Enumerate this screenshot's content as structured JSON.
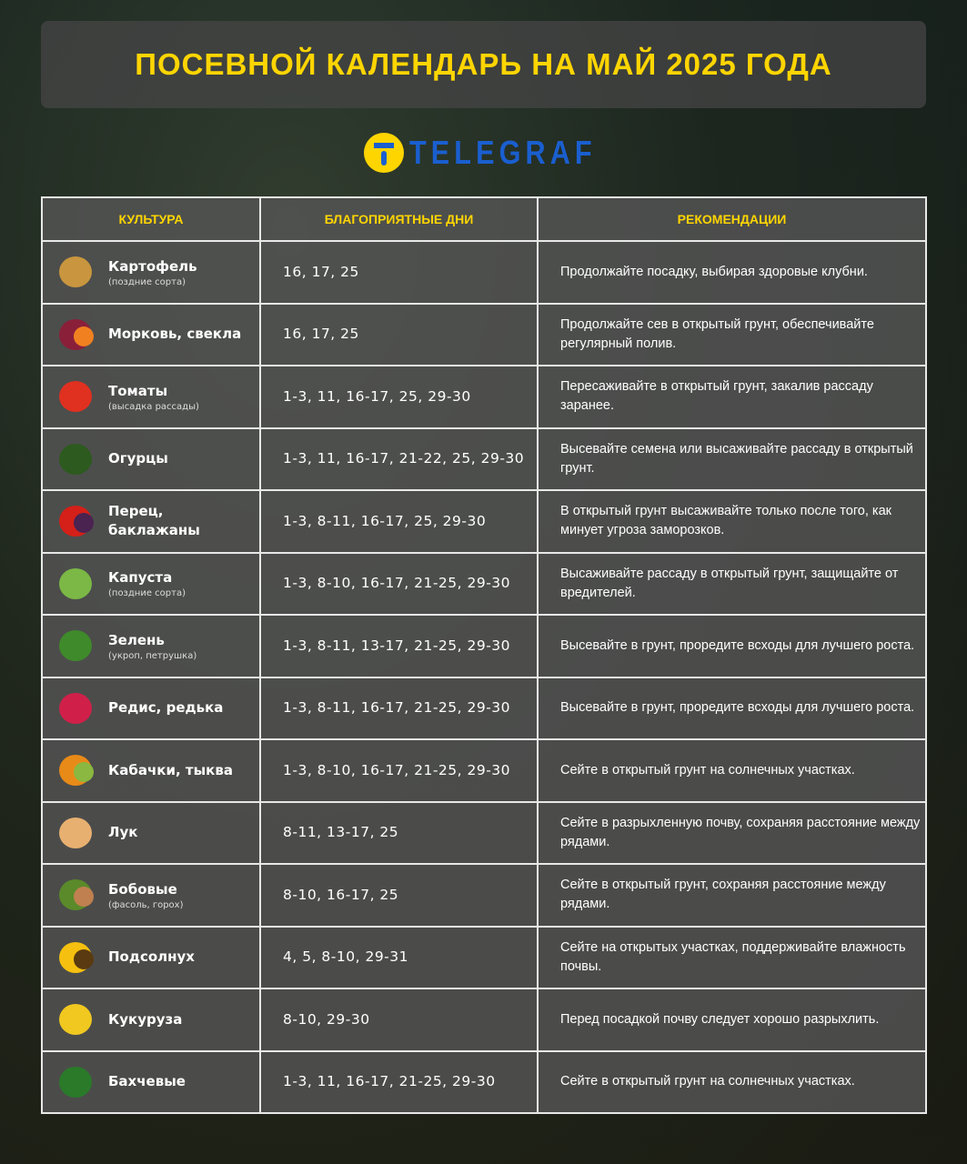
{
  "title": "ПОСЕВНОЙ КАЛЕНДАРЬ НА МАЙ 2025 ГОДА",
  "logo": "TELEGRAF",
  "colors": {
    "accent": "#ffd500",
    "brand": "#1a5fd0"
  },
  "headers": {
    "culture": "КУЛЬТУРА",
    "days": "БЛАГОПРИЯТНЫЕ ДНИ",
    "rec": "РЕКОМЕНДАЦИИ"
  },
  "rows": [
    {
      "icon": "potato-icon",
      "name": "Картофель",
      "sub": "(поздние сорта)",
      "days": "16, 17, 25",
      "rec": "Продолжайте посадку, выбирая здоровые клубни."
    },
    {
      "icon": "carrot-beet-icon",
      "name": "Морковь, свекла",
      "sub": "",
      "days": "16, 17, 25",
      "rec": "Продолжайте сев в открытый грунт, обеспечивайте регулярный полив."
    },
    {
      "icon": "tomato-icon",
      "name": "Томаты",
      "sub": "(высадка рассады)",
      "days": "1-3, 11, 16-17, 25, 29-30",
      "rec": "Пересаживайте в открытый грунт, закалив рассаду заранее."
    },
    {
      "icon": "cucumber-icon",
      "name": "Огурцы",
      "sub": "",
      "days": "1-3, 11, 16-17, 21-22, 25, 29-30",
      "rec": "Высевайте семена или высаживайте рассаду в открытый грунт."
    },
    {
      "icon": "pepper-eggplant-icon",
      "name": "Перец, баклажаны",
      "sub": "",
      "days": "1-3, 8-11, 16-17, 25, 29-30",
      "rec": "В открытый грунт высаживайте только после того, как минует угроза заморозков."
    },
    {
      "icon": "cabbage-icon",
      "name": "Капуста",
      "sub": "(поздние сорта)",
      "days": "1-3, 8-10, 16-17, 21-25, 29-30",
      "rec": "Высаживайте рассаду в открытый грунт, защищайте от вредителей."
    },
    {
      "icon": "greens-icon",
      "name": "Зелень",
      "sub": "(укроп, петрушка)",
      "days": "1-3, 8-11, 13-17, 21-25, 29-30",
      "rec": "Высевайте в грунт, проредите всходы для лучшего роста."
    },
    {
      "icon": "radish-icon",
      "name": "Редис, редька",
      "sub": "",
      "days": "1-3, 8-11, 16-17, 21-25, 29-30",
      "rec": "Высевайте в грунт, проредите всходы для лучшего роста."
    },
    {
      "icon": "squash-pumpkin-icon",
      "name": "Кабачки, тыква",
      "sub": "",
      "days": "1-3, 8-10, 16-17, 21-25, 29-30",
      "rec": "Сейте в открытый грунт на солнечных участках."
    },
    {
      "icon": "onion-icon",
      "name": "Лук",
      "sub": "",
      "days": "8-11, 13-17, 25",
      "rec": "Сейте в разрыхленную почву, сохраняя расстояние между рядами."
    },
    {
      "icon": "beans-icon",
      "name": "Бобовые",
      "sub": "(фасоль, горох)",
      "days": "8-10, 16-17, 25",
      "rec": "Сейте в открытый грунт, сохраняя расстояние между рядами."
    },
    {
      "icon": "sunflower-icon",
      "name": "Подсолнух",
      "sub": "",
      "days": "4, 5, 8-10, 29-31",
      "rec": "Сейте на открытых участках, поддерживайте влажность почвы."
    },
    {
      "icon": "corn-icon",
      "name": "Кукуруза",
      "sub": "",
      "days": "8-10, 29-30",
      "rec": "Перед посадкой почву следует хорошо разрыхлить."
    },
    {
      "icon": "watermelon-icon",
      "name": "Бахчевые",
      "sub": "",
      "days": "1-3, 11, 16-17, 21-25, 29-30",
      "rec": "Сейте в открытый грунт на солнечных участках."
    }
  ]
}
